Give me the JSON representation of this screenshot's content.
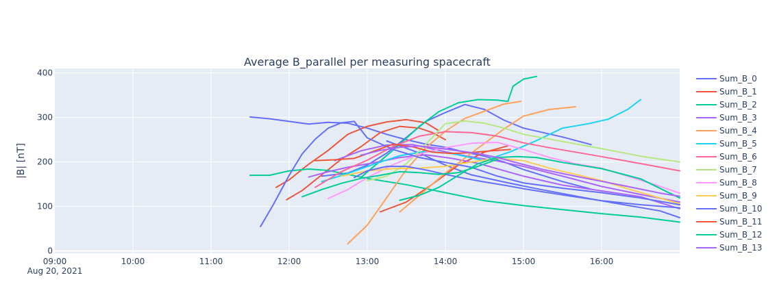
{
  "chart_data": {
    "type": "line",
    "title": "Average B_parallel per measuring spacecraft",
    "xlabel": "",
    "ylabel": "|B|  [nT]",
    "x_axis": {
      "type": "date",
      "range": [
        "2021-08-20 09:00",
        "2021-08-20 17:00"
      ],
      "tick_labels": [
        "09:00",
        "10:00",
        "11:00",
        "12:00",
        "13:00",
        "14:00",
        "15:00",
        "16:00"
      ],
      "date_label": "Aug 20, 2021"
    },
    "y_axis": {
      "range": [
        -5,
        410
      ],
      "tick_labels": [
        "0",
        "100",
        "200",
        "300",
        "400"
      ]
    },
    "grid": true,
    "legend_position": "right",
    "series": [
      {
        "name": "Sum_B_0",
        "color": "#636efa",
        "x": [
          "11:30",
          "11:45",
          "12:00",
          "12:15",
          "12:30",
          "12:45",
          "13:00",
          "13:15",
          "13:30",
          "13:45",
          "14:00",
          "14:15",
          "14:30",
          "14:45",
          "15:00",
          "15:30",
          "15:52"
        ],
        "y": [
          301,
          297,
          291,
          285,
          289,
          287,
          276,
          262,
          250,
          240,
          233,
          222,
          213,
          200,
          183,
          156,
          139
        ]
      },
      {
        "name": "Sum_B_0",
        "color": "#636efa",
        "x": [
          "13:15",
          "13:40",
          "14:00",
          "14:20",
          "14:45",
          "15:10",
          "15:30",
          "15:50",
          "16:15",
          "16:45",
          "17:00"
        ],
        "y": [
          247,
          220,
          193,
          171,
          155,
          140,
          129,
          118,
          105,
          90,
          75
        ]
      },
      {
        "name": "Sum_B_0",
        "color": "#636efa",
        "x": [
          "12:25",
          "12:45",
          "13:00",
          "13:15",
          "13:30",
          "13:45",
          "14:00",
          "14:15",
          "14:30",
          "14:45",
          "15:00",
          "15:30",
          "15:52"
        ],
        "y": [
          168,
          175,
          193,
          220,
          255,
          291,
          311,
          329,
          318,
          294,
          276,
          256,
          239
        ]
      },
      {
        "name": "Sum_B_1",
        "color": "#ef553b",
        "x": [
          "11:50",
          "12:00",
          "12:15",
          "12:30",
          "12:45",
          "13:00",
          "13:15",
          "13:30",
          "13:45",
          "13:55"
        ],
        "y": [
          143,
          160,
          195,
          226,
          262,
          280,
          290,
          295,
          288,
          270
        ]
      },
      {
        "name": "Sum_B_1",
        "color": "#ef553b",
        "x": [
          "11:58",
          "12:10",
          "12:25",
          "12:40",
          "12:55",
          "13:10",
          "13:25",
          "13:40",
          "13:50",
          "14:00"
        ],
        "y": [
          115,
          136,
          171,
          206,
          234,
          266,
          280,
          276,
          266,
          250
        ]
      },
      {
        "name": "Sum_B_1",
        "color": "#ef553b",
        "x": [
          "13:10",
          "13:30",
          "13:50",
          "14:10",
          "14:30",
          "14:48"
        ],
        "y": [
          88,
          110,
          150,
          193,
          222,
          236
        ]
      },
      {
        "name": "Sum_B_2",
        "color": "#00cc96",
        "x": [
          "11:30",
          "11:45",
          "12:00",
          "12:15",
          "12:30",
          "12:45",
          "13:00",
          "13:30",
          "14:00",
          "14:30",
          "15:00",
          "15:30",
          "16:00",
          "16:30",
          "17:00"
        ],
        "y": [
          170,
          170,
          180,
          184,
          181,
          172,
          163,
          149,
          131,
          113,
          102,
          93,
          84,
          76,
          65
        ]
      },
      {
        "name": "Sum_B_2",
        "color": "#00cc96",
        "x": [
          "12:55",
          "13:10",
          "13:25",
          "13:40",
          "13:55",
          "14:10",
          "14:25",
          "14:40",
          "14:48",
          "14:52",
          "15:00",
          "15:10"
        ],
        "y": [
          165,
          202,
          240,
          280,
          313,
          333,
          340,
          339,
          336,
          370,
          386,
          392
        ]
      },
      {
        "name": "Sum_B_3",
        "color": "#ab63fa",
        "x": [
          "12:35",
          "12:55",
          "13:15",
          "13:35",
          "13:55",
          "14:15",
          "14:40",
          "15:00",
          "15:30",
          "16:00",
          "16:30",
          "17:00"
        ],
        "y": [
          203,
          225,
          238,
          239,
          226,
          214,
          202,
          190,
          168,
          145,
          127,
          110
        ]
      },
      {
        "name": "Sum_B_3",
        "color": "#ab63fa",
        "x": [
          "12:15",
          "12:30",
          "12:45",
          "13:05",
          "13:25",
          "13:45",
          "14:05",
          "14:25",
          "15:00",
          "15:30",
          "16:00",
          "16:30",
          "17:00"
        ],
        "y": [
          166,
          178,
          188,
          198,
          210,
          216,
          208,
          197,
          168,
          148,
          135,
          122,
          95
        ]
      },
      {
        "name": "Sum_B_4",
        "color": "#ffa15a",
        "x": [
          "12:45",
          "13:00",
          "13:15",
          "13:30",
          "13:45",
          "14:00",
          "14:15",
          "14:30",
          "14:45",
          "14:58"
        ],
        "y": [
          16,
          58,
          120,
          183,
          232,
          269,
          298,
          314,
          330,
          336
        ]
      },
      {
        "name": "Sum_B_4",
        "color": "#ffa15a",
        "x": [
          "13:25",
          "13:40",
          "14:00",
          "14:20",
          "14:45",
          "15:00",
          "15:20",
          "15:40"
        ],
        "y": [
          88,
          125,
          175,
          220,
          274,
          303,
          318,
          324
        ]
      },
      {
        "name": "Sum_B_5",
        "color": "#19d3f3",
        "x": [
          "12:25",
          "12:45",
          "13:05",
          "13:25",
          "13:45",
          "14:05",
          "14:30",
          "14:50",
          "15:10",
          "15:30",
          "15:50",
          "16:05",
          "16:20",
          "16:30"
        ],
        "y": [
          156,
          174,
          195,
          214,
          224,
          219,
          203,
          223,
          248,
          276,
          286,
          296,
          318,
          340
        ]
      },
      {
        "name": "Sum_B_6",
        "color": "#ff6692",
        "x": [
          "12:20",
          "12:40",
          "13:00",
          "13:20",
          "13:40",
          "14:00",
          "14:20",
          "14:40",
          "15:00",
          "15:20",
          "15:40",
          "16:00",
          "16:40",
          "17:00"
        ],
        "y": [
          143,
          178,
          204,
          235,
          258,
          268,
          266,
          258,
          243,
          232,
          222,
          212,
          191,
          180
        ]
      },
      {
        "name": "Sum_B_7",
        "color": "#b6e880",
        "x": [
          "13:00",
          "13:15",
          "13:30",
          "13:45",
          "14:00",
          "14:15",
          "14:30",
          "14:45",
          "15:00",
          "15:30",
          "16:00",
          "16:30",
          "17:00"
        ],
        "y": [
          158,
          168,
          196,
          240,
          286,
          292,
          287,
          276,
          262,
          246,
          230,
          213,
          200
        ]
      },
      {
        "name": "Sum_B_8",
        "color": "#ff97ff",
        "x": [
          "12:30",
          "12:45",
          "13:00",
          "13:20",
          "13:40",
          "14:00",
          "14:20",
          "14:40",
          "15:00",
          "15:20",
          "15:40",
          "16:00",
          "16:20",
          "16:40",
          "17:00"
        ],
        "y": [
          118,
          138,
          165,
          194,
          218,
          232,
          242,
          244,
          228,
          210,
          196,
          186,
          168,
          150,
          130
        ]
      },
      {
        "name": "Sum_B_9",
        "color": "#fecb52",
        "x": [
          "12:40",
          "13:00",
          "13:20",
          "13:40",
          "14:00",
          "14:20",
          "14:40",
          "15:00",
          "15:20",
          "15:40",
          "16:00",
          "16:20",
          "16:40",
          "17:00"
        ],
        "y": [
          168,
          180,
          185,
          186,
          190,
          200,
          208,
          203,
          186,
          172,
          158,
          140,
          123,
          106
        ]
      },
      {
        "name": "Sum_B_10",
        "color": "#636efa",
        "x": [
          "11:38",
          "11:48",
          "12:00",
          "12:10",
          "12:20",
          "12:30",
          "12:40",
          "12:50",
          "13:00",
          "13:20",
          "13:40",
          "14:00",
          "14:20",
          "14:40",
          "15:00",
          "15:30",
          "16:00",
          "16:30",
          "17:00"
        ],
        "y": [
          55,
          105,
          170,
          218,
          251,
          276,
          288,
          291,
          254,
          228,
          210,
          199,
          188,
          168,
          153,
          141,
          131,
          119,
          104
        ]
      },
      {
        "name": "Sum_B_10",
        "color": "#636efa",
        "x": [
          "12:50",
          "13:00",
          "13:15",
          "13:30",
          "13:45",
          "14:00",
          "14:15",
          "14:30",
          "14:45",
          "15:00",
          "15:30",
          "16:00",
          "16:30",
          "17:00"
        ],
        "y": [
          165,
          180,
          190,
          190,
          182,
          172,
          163,
          155,
          148,
          140,
          126,
          113,
          104,
          97
        ]
      },
      {
        "name": "Sum_B_11",
        "color": "#ef553b",
        "x": [
          "12:20",
          "12:35",
          "12:50",
          "13:05",
          "13:20",
          "13:35",
          "13:50",
          "14:05",
          "14:20",
          "14:35",
          "14:50"
        ],
        "y": [
          203,
          205,
          208,
          224,
          240,
          234,
          222,
          219,
          221,
          225,
          228
        ]
      },
      {
        "name": "Sum_B_12",
        "color": "#00cc96",
        "x": [
          "12:10",
          "12:25",
          "12:40",
          "12:55",
          "13:10",
          "13:25",
          "13:40",
          "13:55",
          "14:10",
          "14:25",
          "14:40"
        ],
        "y": [
          122,
          138,
          152,
          163,
          170,
          178,
          176,
          172,
          176,
          190,
          206
        ]
      },
      {
        "name": "Sum_B_12",
        "color": "#00cc96",
        "x": [
          "13:25",
          "13:40",
          "13:55",
          "14:10",
          "14:25",
          "14:40",
          "14:55",
          "15:10",
          "15:30",
          "16:00",
          "16:30",
          "17:00"
        ],
        "y": [
          114,
          125,
          143,
          170,
          196,
          210,
          212,
          210,
          199,
          185,
          162,
          119
        ]
      },
      {
        "name": "Sum_B_13",
        "color": "#ab63fa",
        "x": [
          "12:55",
          "13:10",
          "13:25",
          "13:40",
          "13:55",
          "14:10",
          "14:25",
          "14:40",
          "14:55",
          "15:15",
          "15:45",
          "16:15",
          "16:45",
          "17:00"
        ],
        "y": [
          215,
          226,
          233,
          236,
          231,
          225,
          219,
          210,
          198,
          183,
          165,
          148,
          130,
          123
        ]
      }
    ],
    "legend": [
      {
        "name": "Sum_B_0",
        "color": "#636efa"
      },
      {
        "name": "Sum_B_1",
        "color": "#ef553b"
      },
      {
        "name": "Sum_B_2",
        "color": "#00cc96"
      },
      {
        "name": "Sum_B_3",
        "color": "#ab63fa"
      },
      {
        "name": "Sum_B_4",
        "color": "#ffa15a"
      },
      {
        "name": "Sum_B_5",
        "color": "#19d3f3"
      },
      {
        "name": "Sum_B_6",
        "color": "#ff6692"
      },
      {
        "name": "Sum_B_7",
        "color": "#b6e880"
      },
      {
        "name": "Sum_B_8",
        "color": "#ff97ff"
      },
      {
        "name": "Sum_B_9",
        "color": "#fecb52"
      },
      {
        "name": "Sum_B_10",
        "color": "#636efa"
      },
      {
        "name": "Sum_B_11",
        "color": "#ef553b"
      },
      {
        "name": "Sum_B_12",
        "color": "#00cc96"
      },
      {
        "name": "Sum_B_13",
        "color": "#ab63fa"
      }
    ]
  },
  "colors": {
    "plot_bg": "#e5ecf6",
    "grid": "#ffffff",
    "text": "#2a3f5f"
  }
}
